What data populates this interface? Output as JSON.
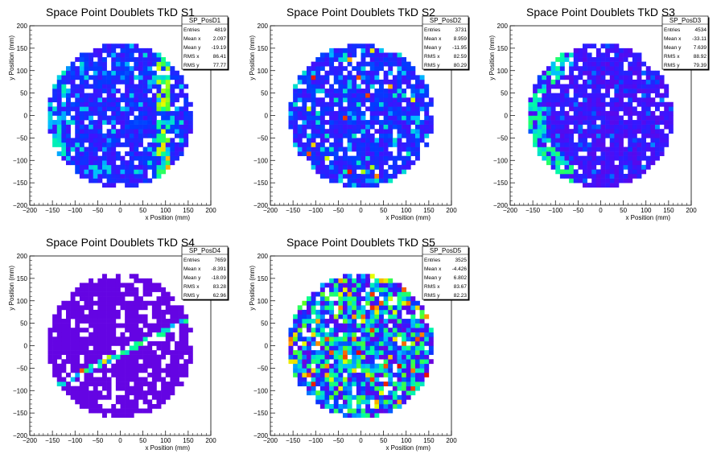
{
  "chart_data": [
    {
      "type": "heatmap",
      "title": "Space Point Doublets TkD S1",
      "xlabel": "x Position (mm)",
      "ylabel": "y Position (mm)",
      "xlim": [
        -200,
        200
      ],
      "ylim": [
        -200,
        200
      ],
      "xticks": [
        "−200",
        "−150",
        "−100",
        "−50",
        "0",
        "50",
        "100",
        "150",
        "200"
      ],
      "yticks": [
        "200",
        "150",
        "100",
        "50",
        "0",
        "−50",
        "−100",
        "−150",
        "−200"
      ],
      "stats": {
        "name": "SP_PosD1",
        "rows": [
          {
            "label": "Entries",
            "value": "4819"
          },
          {
            "label": "Mean x",
            "value": "2.097"
          },
          {
            "label": "Mean y",
            "value": "-19.19"
          },
          {
            "label": "RMS x",
            "value": "86.41"
          },
          {
            "label": "RMS y",
            "value": "77.77"
          }
        ]
      },
      "distribution": {
        "radius_mm": 160,
        "bin_mm": 10,
        "palette": "rainbow",
        "base_level": 0.22,
        "spread": 0.1,
        "empty_fraction": 0.08,
        "features": [
          "green left edge band",
          "hot vertical band near x=100 mm"
        ]
      }
    },
    {
      "type": "heatmap",
      "title": "Space Point Doublets TkD S2",
      "xlabel": "x Position (mm)",
      "ylabel": "y Position (mm)",
      "xlim": [
        -200,
        200
      ],
      "ylim": [
        -200,
        200
      ],
      "xticks": [
        "−200",
        "−150",
        "−100",
        "−50",
        "0",
        "50",
        "100",
        "150",
        "200"
      ],
      "yticks": [
        "200",
        "150",
        "100",
        "50",
        "0",
        "−50",
        "−100",
        "−150",
        "−200"
      ],
      "stats": {
        "name": "SP_PosD2",
        "rows": [
          {
            "label": "Entries",
            "value": "3731"
          },
          {
            "label": "Mean x",
            "value": "8.959"
          },
          {
            "label": "Mean y",
            "value": "-11.95"
          },
          {
            "label": "RMS x",
            "value": "82.59"
          },
          {
            "label": "RMS y",
            "value": "80.29"
          }
        ]
      },
      "distribution": {
        "radius_mm": 160,
        "bin_mm": 10,
        "palette": "rainbow",
        "base_level": 0.22,
        "spread": 0.1,
        "empty_fraction": 0.15,
        "features": [
          "sparse white holes",
          "few hot spots right side"
        ]
      }
    },
    {
      "type": "heatmap",
      "title": "Space Point Doublets TkD S3",
      "xlabel": "x Position (mm)",
      "ylabel": "y Position (mm)",
      "xlim": [
        -200,
        200
      ],
      "ylim": [
        -200,
        200
      ],
      "xticks": [
        "−200",
        "−150",
        "−100",
        "−50",
        "0",
        "50",
        "100",
        "150",
        "200"
      ],
      "yticks": [
        "200",
        "150",
        "100",
        "50",
        "0",
        "−50",
        "−100",
        "−150",
        "−200"
      ],
      "stats": {
        "name": "SP_PosD3",
        "rows": [
          {
            "label": "Entries",
            "value": "4534"
          },
          {
            "label": "Mean x",
            "value": "-33.11"
          },
          {
            "label": "Mean y",
            "value": "7.639"
          },
          {
            "label": "RMS x",
            "value": "88.92"
          },
          {
            "label": "RMS y",
            "value": "79.39"
          }
        ]
      },
      "distribution": {
        "radius_mm": 160,
        "bin_mm": 10,
        "palette": "rainbow",
        "base_level": 0.14,
        "spread": 0.08,
        "empty_fraction": 0.1,
        "features": [
          "green band along left edge",
          "white holes lower right"
        ]
      }
    },
    {
      "type": "heatmap",
      "title": "Space Point Doublets TkD S4",
      "xlabel": "x Position (mm)",
      "ylabel": "y Position (mm)",
      "xlim": [
        -200,
        200
      ],
      "ylim": [
        -200,
        200
      ],
      "xticks": [
        "−200",
        "−150",
        "−100",
        "−50",
        "0",
        "50",
        "100",
        "150",
        "200"
      ],
      "yticks": [
        "200",
        "150",
        "100",
        "50",
        "0",
        "−50",
        "−100",
        "−150",
        "−200"
      ],
      "stats": {
        "name": "SP_PosD4",
        "rows": [
          {
            "label": "Entries",
            "value": "7659"
          },
          {
            "label": "Mean x",
            "value": "-8.391"
          },
          {
            "label": "Mean y",
            "value": "-18.09"
          },
          {
            "label": "RMS x",
            "value": "83.28"
          },
          {
            "label": "RMS y",
            "value": "62.96"
          }
        ]
      },
      "distribution": {
        "radius_mm": 160,
        "bin_mm": 10,
        "palette": "rainbow",
        "base_level": 0.03,
        "spread": 0.0,
        "empty_fraction": 0.18,
        "features": [
          "diagonal hot line from (-140,-90) to (150,60)",
          "mostly violet",
          "no bins below y=-160 and few above y=140"
        ]
      }
    },
    {
      "type": "heatmap",
      "title": "Space Point Doublets TkD S5",
      "xlabel": "x Position (mm)",
      "ylabel": "y Position (mm)",
      "xlim": [
        -200,
        200
      ],
      "ylim": [
        -200,
        200
      ],
      "xticks": [
        "−200",
        "−150",
        "−100",
        "−50",
        "0",
        "50",
        "100",
        "150",
        "200"
      ],
      "yticks": [
        "200",
        "150",
        "100",
        "50",
        "0",
        "−50",
        "−100",
        "−150",
        "−200"
      ],
      "stats": {
        "name": "SP_PosD5",
        "rows": [
          {
            "label": "Entries",
            "value": "3525"
          },
          {
            "label": "Mean x",
            "value": "-4.426"
          },
          {
            "label": "Mean y",
            "value": "6.802"
          },
          {
            "label": "RMS x",
            "value": "83.67"
          },
          {
            "label": "RMS y",
            "value": "82.23"
          }
        ]
      },
      "distribution": {
        "radius_mm": 160,
        "bin_mm": 10,
        "palette": "rainbow",
        "base_level": 0.32,
        "spread": 0.22,
        "empty_fraction": 0.12,
        "features": [
          "mixed blue/green/yellow",
          "scattered red bins"
        ]
      }
    }
  ]
}
